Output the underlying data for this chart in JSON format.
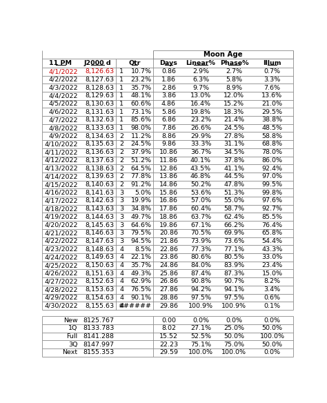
{
  "title": "Moon Age",
  "rows": [
    [
      "4/1/2022",
      "8,126.63",
      "1",
      "10.7%",
      "0.86",
      "2.9%",
      "2.7%",
      "0.7%",
      true
    ],
    [
      "4/2/2022",
      "8,127.63",
      "1",
      "23.2%",
      "1.86",
      "6.3%",
      "5.8%",
      "3.3%",
      false
    ],
    [
      "4/3/2022",
      "8,128.63",
      "1",
      "35.7%",
      "2.86",
      "9.7%",
      "8.9%",
      "7.6%",
      false
    ],
    [
      "4/4/2022",
      "8,129.63",
      "1",
      "48.1%",
      "3.86",
      "13.0%",
      "12.0%",
      "13.6%",
      false
    ],
    [
      "4/5/2022",
      "8,130.63",
      "1",
      "60.6%",
      "4.86",
      "16.4%",
      "15.2%",
      "21.0%",
      false
    ],
    [
      "4/6/2022",
      "8,131.63",
      "1",
      "73.1%",
      "5.86",
      "19.8%",
      "18.3%",
      "29.5%",
      false
    ],
    [
      "4/7/2022",
      "8,132.63",
      "1",
      "85.6%",
      "6.86",
      "23.2%",
      "21.4%",
      "38.8%",
      false
    ],
    [
      "4/8/2022",
      "8,133.63",
      "1",
      "98.0%",
      "7.86",
      "26.6%",
      "24.5%",
      "48.5%",
      false
    ],
    [
      "4/9/2022",
      "8,134.63",
      "2",
      "11.2%",
      "8.86",
      "29.9%",
      "27.8%",
      "58.8%",
      false
    ],
    [
      "4/10/2022",
      "8,135.63",
      "2",
      "24.5%",
      "9.86",
      "33.3%",
      "31.1%",
      "68.8%",
      false
    ],
    [
      "4/11/2022",
      "8,136.63",
      "2",
      "37.9%",
      "10.86",
      "36.7%",
      "34.5%",
      "78.0%",
      false
    ],
    [
      "4/12/2022",
      "8,137.63",
      "2",
      "51.2%",
      "11.86",
      "40.1%",
      "37.8%",
      "86.0%",
      false
    ],
    [
      "4/13/2022",
      "8,138.63",
      "2",
      "64.5%",
      "12.86",
      "43.5%",
      "41.1%",
      "92.4%",
      false
    ],
    [
      "4/14/2022",
      "8,139.63",
      "2",
      "77.8%",
      "13.86",
      "46.8%",
      "44.5%",
      "97.0%",
      false
    ],
    [
      "4/15/2022",
      "8,140.63",
      "2",
      "91.2%",
      "14.86",
      "50.2%",
      "47.8%",
      "99.5%",
      false
    ],
    [
      "4/16/2022",
      "8,141.63",
      "3",
      "5.0%",
      "15.86",
      "53.6%",
      "51.3%",
      "99.8%",
      false
    ],
    [
      "4/17/2022",
      "8,142.63",
      "3",
      "19.9%",
      "16.86",
      "57.0%",
      "55.0%",
      "97.6%",
      false
    ],
    [
      "4/18/2022",
      "8,143.63",
      "3",
      "34.8%",
      "17.86",
      "60.4%",
      "58.7%",
      "92.7%",
      false
    ],
    [
      "4/19/2022",
      "8,144.63",
      "3",
      "49.7%",
      "18.86",
      "63.7%",
      "62.4%",
      "85.5%",
      false
    ],
    [
      "4/20/2022",
      "8,145.63",
      "3",
      "64.6%",
      "19.86",
      "67.1%",
      "66.2%",
      "76.4%",
      false
    ],
    [
      "4/21/2022",
      "8,146.63",
      "3",
      "79.5%",
      "20.86",
      "70.5%",
      "69.9%",
      "65.8%",
      false
    ],
    [
      "4/22/2022",
      "8,147.63",
      "3",
      "94.5%",
      "21.86",
      "73.9%",
      "73.6%",
      "54.4%",
      false
    ],
    [
      "4/23/2022",
      "8,148.63",
      "4",
      "8.5%",
      "22.86",
      "77.3%",
      "77.1%",
      "43.3%",
      false
    ],
    [
      "4/24/2022",
      "8,149.63",
      "4",
      "22.1%",
      "23.86",
      "80.6%",
      "80.5%",
      "33.0%",
      false
    ],
    [
      "4/25/2022",
      "8,150.63",
      "4",
      "35.7%",
      "24.86",
      "84.0%",
      "83.9%",
      "23.4%",
      false
    ],
    [
      "4/26/2022",
      "8,151.63",
      "4",
      "49.3%",
      "25.86",
      "87.4%",
      "87.3%",
      "15.0%",
      false
    ],
    [
      "4/27/2022",
      "8,152.63",
      "4",
      "62.9%",
      "26.86",
      "90.8%",
      "90.7%",
      "8.2%",
      false
    ],
    [
      "4/28/2022",
      "8,153.63",
      "4",
      "76.5%",
      "27.86",
      "94.2%",
      "94.1%",
      "3.4%",
      false
    ],
    [
      "4/29/2022",
      "8,154.63",
      "4",
      "90.1%",
      "28.86",
      "97.5%",
      "97.5%",
      "0.6%",
      false
    ],
    [
      "4/30/2022",
      "8,155.63",
      "4",
      "######",
      "29.86",
      "100.9%",
      "100.9%",
      "0.1%",
      false
    ]
  ],
  "footer_rows": [
    [
      "New",
      "8125.767",
      "0.00",
      "0.0%",
      "0.0%",
      "0.0%"
    ],
    [
      "1Q",
      "8133.783",
      "8.02",
      "27.1%",
      "25.0%",
      "50.0%"
    ],
    [
      "Full",
      "8141.288",
      "15.52",
      "52.5%",
      "50.0%",
      "100.0%"
    ],
    [
      "3Q",
      "8147.997",
      "22.23",
      "75.1%",
      "75.0%",
      "50.0%"
    ],
    [
      "Next",
      "8155.353",
      "29.59",
      "100.0%",
      "100.0%",
      "0.0%"
    ]
  ],
  "col_headers": [
    "11 PM",
    "J2000 d",
    "Qtr",
    "Days",
    "Linear%",
    "Phase%",
    "Illum"
  ],
  "font_size": 6.8,
  "red_color": "#CC0000",
  "black_color": "#000000",
  "line_color": "#888888",
  "bg_color": "#ffffff"
}
